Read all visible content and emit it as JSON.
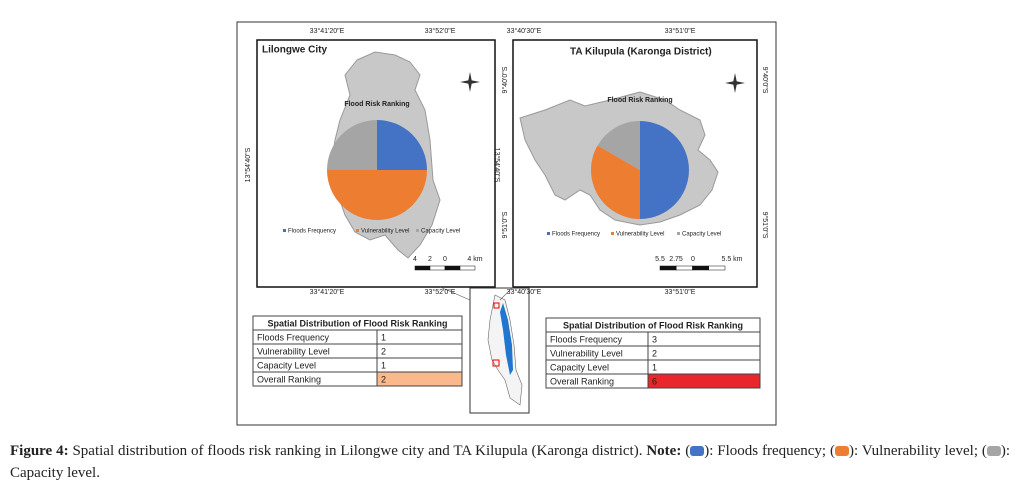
{
  "figure": {
    "maps": [
      {
        "title": "Lilongwe City",
        "pie_title": "Flood  Risk Ranking",
        "top_coords": [
          "33°41'20\"E",
          "33°52'0\"E"
        ],
        "bottom_coords": [
          "33°41'20\"E",
          "33°52'0\"E"
        ],
        "left_coords": [
          "13°54'40\"S"
        ],
        "right_coords": [
          "13°54'40\"S"
        ],
        "scale": [
          "4",
          "2",
          "0",
          "4 km"
        ],
        "table": {
          "header": "Spatial Distribution  of Flood Risk Ranking",
          "rows": [
            [
              "Floods Frequency",
              1
            ],
            [
              "Vulnerability Level",
              2
            ],
            [
              "Capacity Level",
              1
            ],
            [
              "Overall Ranking",
              2
            ]
          ]
        },
        "highlight": "#f9b98b"
      },
      {
        "title": "TA Kilupula (Karonga District)",
        "pie_title": "Flood  Risk Ranking",
        "top_coords": [
          "33°40'30\"E",
          "33°51'0\"E"
        ],
        "bottom_coords": [
          "33°40'30\"E",
          "33°51'0\"E"
        ],
        "left_coords": [
          "9°40'0\"S",
          "9°51'0\"S"
        ],
        "right_coords": [
          "9°40'0\"S",
          "9°51'0\"S"
        ],
        "scale": [
          "5.5",
          "2.75",
          "0",
          "5.5 km"
        ],
        "table": {
          "header": "Spatial Distribution  of Flood Risk Ranking",
          "rows": [
            [
              "Floods Frequency",
              3
            ],
            [
              "Vulnerability Level",
              2
            ],
            [
              "Capacity Level",
              1
            ],
            [
              "Overall Ranking",
              6
            ]
          ]
        },
        "highlight": "#e8262b"
      }
    ],
    "colors": [
      "#4472c4",
      "#ed7d31",
      "#a5a5a5"
    ],
    "caption": {
      "label": "Figure 4:",
      "text": "Spatial distribution of floods risk ranking in Lilongwe city and TA Kilupula (Karonga district).",
      "note_label": "Note:",
      "notes": [
        [
          "(",
          "): Floods frequency;"
        ],
        [
          "(",
          "): Vulnerability level;"
        ],
        [
          "(",
          "): Capacity level."
        ]
      ]
    }
  }
}
